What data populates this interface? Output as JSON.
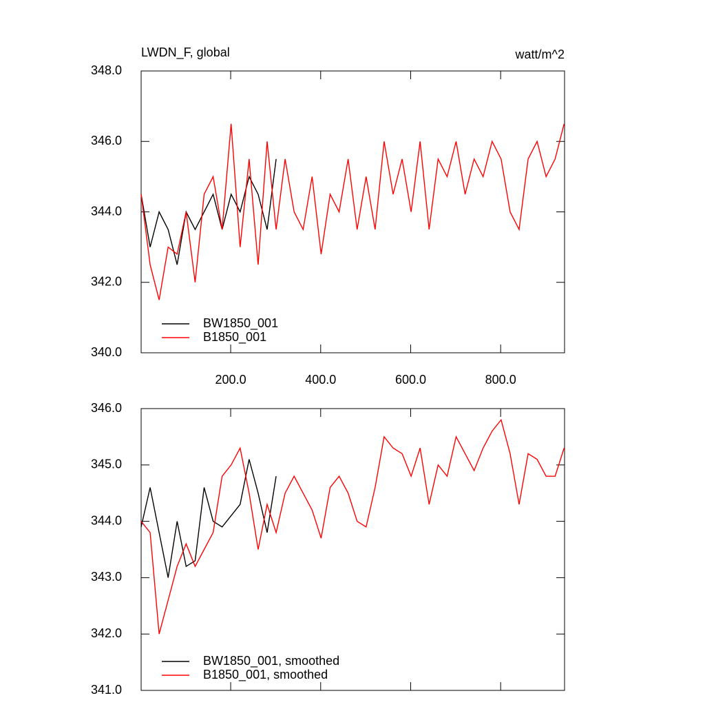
{
  "chart_data": [
    {
      "type": "line",
      "title": "LWDN_F, global",
      "units": "watt/m^2",
      "xlim": [
        1,
        942
      ],
      "ylim": [
        340,
        348
      ],
      "xticks": [
        {
          "value": 200,
          "label": "200.0"
        },
        {
          "value": 400,
          "label": "400.0"
        },
        {
          "value": 600,
          "label": "600.0"
        },
        {
          "value": 800,
          "label": "800.0"
        }
      ],
      "yticks": [
        {
          "value": 340,
          "label": "340.0"
        },
        {
          "value": 342,
          "label": "342.0"
        },
        {
          "value": 344,
          "label": "344.0"
        },
        {
          "value": 346,
          "label": "346.0"
        },
        {
          "value": 348,
          "label": "348.0"
        }
      ],
      "legend": "lower left",
      "series": [
        {
          "name": "BW1850_001",
          "color": "#000000",
          "x": [
            1,
            21,
            41,
            61,
            81,
            101,
            121,
            141,
            161,
            181,
            201,
            221,
            241,
            261,
            281,
            301
          ],
          "values": [
            344.5,
            343.0,
            344.0,
            343.5,
            342.5,
            344.0,
            343.5,
            344.0,
            344.5,
            343.5,
            344.5,
            344.0,
            345.0,
            344.5,
            343.5,
            345.5
          ]
        },
        {
          "name": "B1850_001",
          "color": "#ff0000",
          "x": [
            1,
            21,
            41,
            61,
            81,
            101,
            121,
            141,
            161,
            181,
            201,
            221,
            241,
            261,
            281,
            301,
            321,
            341,
            361,
            381,
            401,
            421,
            441,
            461,
            481,
            501,
            521,
            541,
            561,
            581,
            601,
            621,
            641,
            661,
            681,
            701,
            721,
            741,
            761,
            781,
            801,
            821,
            841,
            861,
            881,
            901,
            921,
            941
          ],
          "values": [
            344.5,
            342.5,
            341.5,
            343.0,
            342.8,
            344.0,
            342.0,
            344.5,
            345.0,
            343.5,
            346.5,
            343.0,
            345.5,
            342.5,
            346.0,
            343.5,
            345.5,
            344.0,
            343.5,
            345.0,
            342.8,
            344.5,
            344.0,
            345.5,
            343.5,
            345.0,
            343.5,
            346.0,
            344.5,
            345.5,
            344.0,
            346.0,
            343.5,
            345.5,
            345.0,
            346.0,
            344.5,
            345.5,
            345.0,
            346.0,
            345.5,
            344.0,
            343.5,
            345.5,
            346.0,
            345.0,
            345.5,
            346.5
          ]
        }
      ]
    },
    {
      "type": "line",
      "xlim": [
        1,
        942
      ],
      "ylim": [
        341,
        346
      ],
      "xticks": [
        200,
        400,
        600,
        800
      ],
      "yticks": [
        {
          "value": 341,
          "label": "341.0"
        },
        {
          "value": 342,
          "label": "342.0"
        },
        {
          "value": 343,
          "label": "343.0"
        },
        {
          "value": 344,
          "label": "344.0"
        },
        {
          "value": 345,
          "label": "345.0"
        },
        {
          "value": 346,
          "label": "346.0"
        }
      ],
      "legend": "lower left",
      "series": [
        {
          "name": "BW1850_001, smoothed",
          "color": "#000000",
          "x": [
            1,
            21,
            41,
            61,
            81,
            101,
            121,
            141,
            161,
            181,
            201,
            221,
            241,
            261,
            281,
            301
          ],
          "values": [
            343.9,
            344.6,
            343.8,
            343.0,
            344.0,
            343.2,
            343.3,
            344.6,
            344.0,
            343.9,
            344.1,
            344.3,
            345.1,
            344.5,
            343.8,
            344.8
          ]
        },
        {
          "name": "B1850_001, smoothed",
          "color": "#ff0000",
          "x": [
            1,
            21,
            41,
            61,
            81,
            101,
            121,
            141,
            161,
            181,
            201,
            221,
            241,
            261,
            281,
            301,
            321,
            341,
            361,
            381,
            401,
            421,
            441,
            461,
            481,
            501,
            521,
            541,
            561,
            581,
            601,
            621,
            641,
            661,
            681,
            701,
            721,
            741,
            761,
            781,
            801,
            821,
            841,
            861,
            881,
            901,
            921,
            941
          ],
          "values": [
            344.0,
            343.8,
            342.0,
            342.6,
            343.2,
            343.6,
            343.2,
            343.5,
            343.8,
            344.8,
            345.0,
            345.3,
            344.5,
            343.5,
            344.3,
            343.8,
            344.5,
            344.8,
            344.5,
            344.2,
            343.7,
            344.6,
            344.8,
            344.5,
            344.0,
            343.9,
            344.6,
            345.5,
            345.3,
            345.2,
            344.8,
            345.3,
            344.3,
            345.0,
            344.8,
            345.5,
            345.2,
            344.9,
            345.3,
            345.6,
            345.8,
            345.2,
            344.3,
            345.2,
            345.1,
            344.8,
            344.8,
            345.3
          ]
        }
      ]
    }
  ]
}
